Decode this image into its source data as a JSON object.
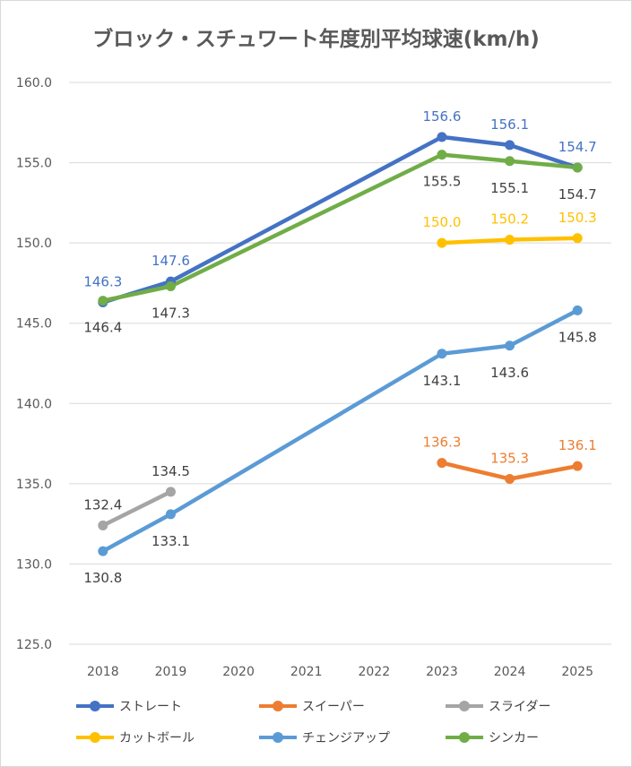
{
  "chart_data": {
    "type": "line",
    "title": "ブロック・スチュワート年度別平均球速(km/h)",
    "categories": [
      "2018",
      "2019",
      "2020",
      "2021",
      "2022",
      "2023",
      "2024",
      "2025"
    ],
    "ylim": [
      125.0,
      160.0
    ],
    "yticks": [
      "125.0",
      "130.0",
      "135.0",
      "140.0",
      "145.0",
      "150.0",
      "155.0",
      "160.0"
    ],
    "grid": true,
    "legend_position": "bottom",
    "series": [
      {
        "name": "ストレート",
        "color": "#4472c4",
        "label_color": "#4472c4",
        "points": [
          [
            "2018",
            146.3
          ],
          [
            "2019",
            147.6
          ],
          [
            "2023",
            156.6
          ],
          [
            "2024",
            156.1
          ],
          [
            "2025",
            154.7
          ]
        ],
        "labels": [
          "146.3",
          "147.6",
          "156.6",
          "156.1",
          "154.7"
        ],
        "label_pos": "above"
      },
      {
        "name": "スイーパー",
        "color": "#ed7d31",
        "label_color": "#ed7d31",
        "points": [
          [
            "2023",
            136.3
          ],
          [
            "2024",
            135.3
          ],
          [
            "2025",
            136.1
          ]
        ],
        "labels": [
          "136.3",
          "135.3",
          "136.1"
        ],
        "label_pos": "above"
      },
      {
        "name": "スライダー",
        "color": "#a5a5a5",
        "label_color": "#404040",
        "points": [
          [
            "2018",
            132.4
          ],
          [
            "2019",
            134.5
          ]
        ],
        "labels": [
          "132.4",
          "134.5"
        ],
        "label_pos": "above"
      },
      {
        "name": "カットボール",
        "color": "#ffc000",
        "label_color": "#ffc000",
        "points": [
          [
            "2023",
            150.0
          ],
          [
            "2024",
            150.2
          ],
          [
            "2025",
            150.3
          ]
        ],
        "labels": [
          "150.0",
          "150.2",
          "150.3"
        ],
        "label_pos": "above"
      },
      {
        "name": "チェンジアップ",
        "color": "#5b9bd5",
        "label_color": "#404040",
        "points": [
          [
            "2018",
            130.8
          ],
          [
            "2019",
            133.1
          ],
          [
            "2023",
            143.1
          ],
          [
            "2024",
            143.6
          ],
          [
            "2025",
            145.8
          ]
        ],
        "labels": [
          "130.8",
          "133.1",
          "143.1",
          "143.6",
          "145.8"
        ],
        "label_pos": "below"
      },
      {
        "name": "シンカー",
        "color": "#70ad47",
        "label_color": "#404040",
        "points": [
          [
            "2018",
            146.4
          ],
          [
            "2019",
            147.3
          ],
          [
            "2023",
            155.5
          ],
          [
            "2024",
            155.1
          ],
          [
            "2025",
            154.7
          ]
        ],
        "labels": [
          "146.4",
          "147.3",
          "155.5",
          "155.1",
          "154.7"
        ],
        "label_pos": "below"
      }
    ]
  }
}
